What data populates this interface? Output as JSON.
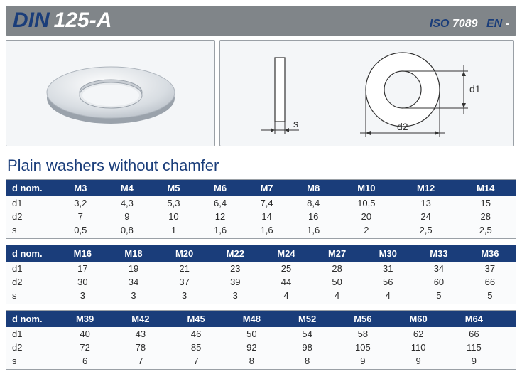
{
  "header": {
    "din_label": "DIN",
    "din_number": "125-A",
    "iso_label": "ISO",
    "iso_number": "7089",
    "en_label": "EN",
    "en_number": "-"
  },
  "subtitle": "Plain washers without chamfer",
  "colors": {
    "header_bg": "#808589",
    "brand_blue": "#1a3d7a",
    "panel_bg": "#f4f6f8",
    "panel_border": "#9aa0a6",
    "table_header_bg": "#1a3d7a",
    "table_header_fg": "#ffffff",
    "text": "#2b2b2b"
  },
  "diagram": {
    "side_label": "s",
    "front_labels": {
      "inner": "d1",
      "outer": "d2"
    }
  },
  "row_labels": [
    "d nom.",
    "d1",
    "d2",
    "s"
  ],
  "tables": [
    {
      "sizes": [
        "M3",
        "M4",
        "M5",
        "M6",
        "M7",
        "M8",
        "M10",
        "M12",
        "M14"
      ],
      "d1": [
        "3,2",
        "4,3",
        "5,3",
        "6,4",
        "7,4",
        "8,4",
        "10,5",
        "13",
        "15"
      ],
      "d2": [
        "7",
        "9",
        "10",
        "12",
        "14",
        "16",
        "20",
        "24",
        "28"
      ],
      "s": [
        "0,5",
        "0,8",
        "1",
        "1,6",
        "1,6",
        "1,6",
        "2",
        "2,5",
        "2,5"
      ]
    },
    {
      "sizes": [
        "M16",
        "M18",
        "M20",
        "M22",
        "M24",
        "M27",
        "M30",
        "M33",
        "M36"
      ],
      "d1": [
        "17",
        "19",
        "21",
        "23",
        "25",
        "28",
        "31",
        "34",
        "37"
      ],
      "d2": [
        "30",
        "34",
        "37",
        "39",
        "44",
        "50",
        "56",
        "60",
        "66"
      ],
      "s": [
        "3",
        "3",
        "3",
        "3",
        "4",
        "4",
        "4",
        "5",
        "5"
      ]
    },
    {
      "sizes": [
        "M39",
        "M42",
        "M45",
        "M48",
        "M52",
        "M56",
        "M60",
        "M64"
      ],
      "d1": [
        "40",
        "43",
        "46",
        "50",
        "54",
        "58",
        "62",
        "66"
      ],
      "d2": [
        "72",
        "78",
        "85",
        "92",
        "98",
        "105",
        "110",
        "115"
      ],
      "s": [
        "6",
        "7",
        "7",
        "8",
        "8",
        "9",
        "9",
        "9"
      ]
    }
  ]
}
